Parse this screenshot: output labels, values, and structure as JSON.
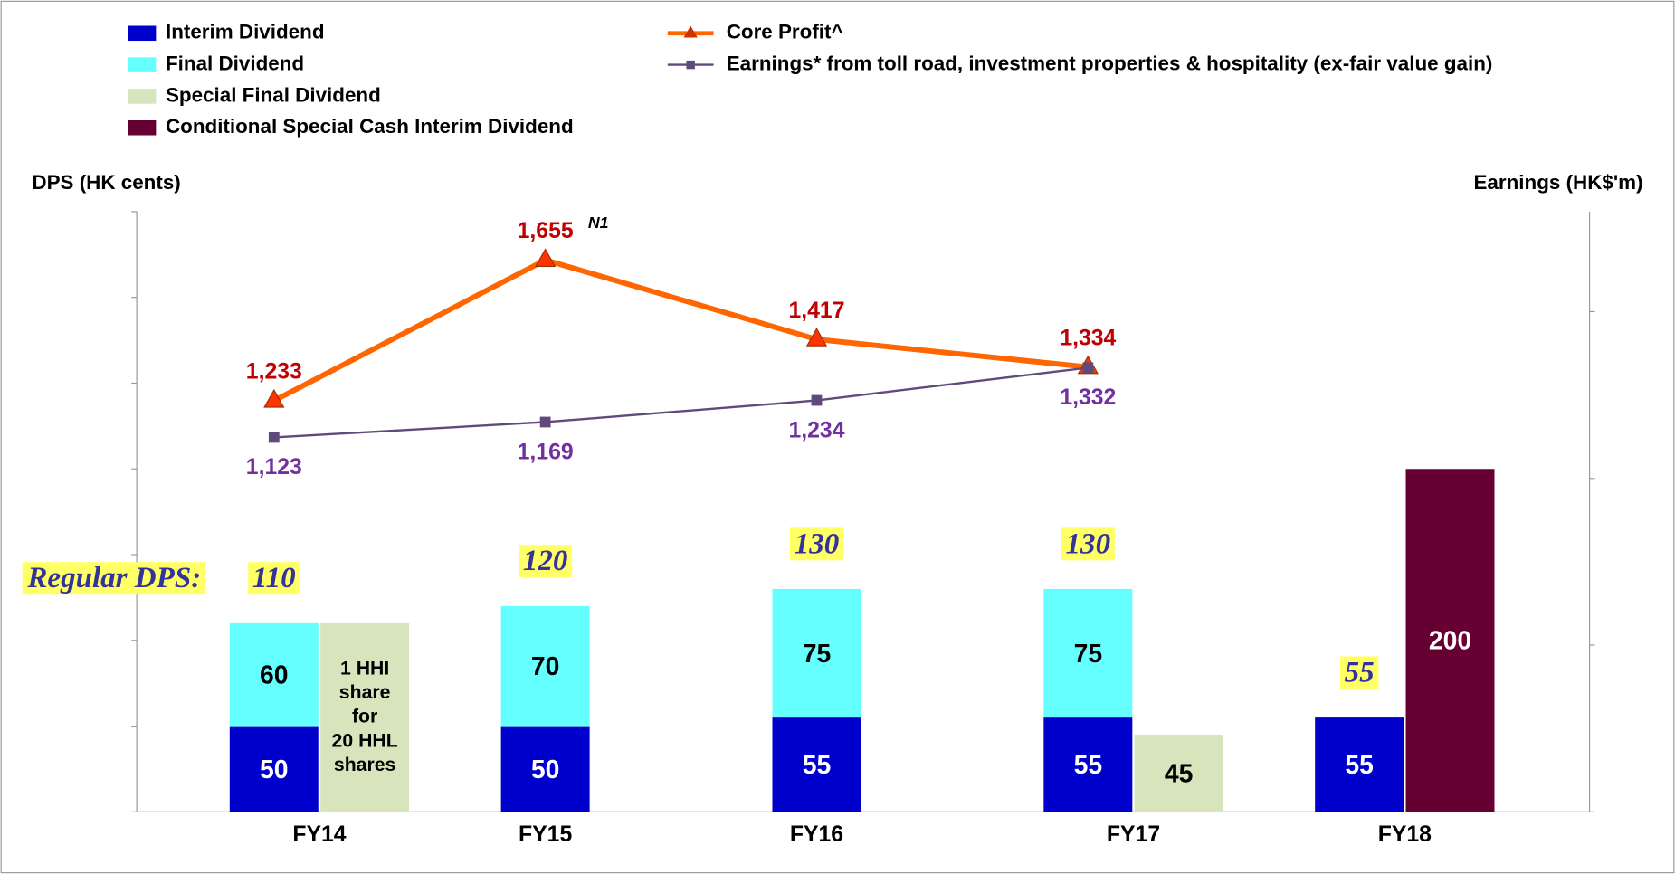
{
  "chart_data": {
    "type": "combo",
    "y_label": "DPS (HK cents)",
    "y2_label": "Earnings (HK$'m)",
    "categories": [
      "FY14",
      "FY15",
      "FY16",
      "FY17",
      "FY18"
    ],
    "ylim": [
      0,
      350
    ],
    "yticks": [
      0,
      50,
      100,
      150,
      200,
      250,
      300,
      350
    ],
    "y2lim": [
      0,
      1800
    ],
    "y2ticks": [
      0,
      500,
      1000,
      1500
    ],
    "series": [
      {
        "name": "Interim Dividend",
        "type": "bar",
        "column": "main",
        "color": "#0000CC",
        "label_color": "#FFFFFF",
        "values": [
          50,
          50,
          55,
          55,
          55
        ]
      },
      {
        "name": "Final Dividend",
        "type": "bar",
        "column": "main",
        "color": "#66FFFF",
        "label_color": "#000000",
        "values": [
          60,
          70,
          75,
          75,
          null
        ]
      },
      {
        "name": "Special Final Dividend",
        "type": "bar",
        "column": "side",
        "color": "#D8E4BC",
        "label_color": "#000000",
        "values": [
          110,
          null,
          null,
          45,
          null
        ]
      },
      {
        "name": "Conditional Special Cash Interim Dividend",
        "type": "bar",
        "column": "side",
        "color": "#660033",
        "label_color": "#FFFFFF",
        "values": [
          null,
          null,
          null,
          null,
          200
        ]
      },
      {
        "name": "Core Profit^",
        "type": "line",
        "axis": "y2",
        "color": "#FF6600",
        "marker": "triangle",
        "label_color": "#C00000",
        "label_side": "above",
        "values": [
          1233,
          1655,
          1417,
          1334,
          null
        ],
        "value_labels": [
          "1,233",
          "1,655",
          "1,417",
          "1,334",
          null
        ]
      },
      {
        "name": "Earnings* from toll road, investment properties & hospitality (ex-fair value gain)",
        "type": "line",
        "axis": "y2",
        "color": "#604A7B",
        "marker": "square",
        "label_color": "#7030A0",
        "label_side": "below",
        "values": [
          1123,
          1169,
          1234,
          1332,
          null
        ],
        "value_labels": [
          "1,123",
          "1,169",
          "1,234",
          "1,332",
          null
        ]
      }
    ],
    "regular_dps_label": "Regular DPS:",
    "regular_dps": [
      110,
      120,
      130,
      130,
      55
    ],
    "special_note": {
      "category": "FY14",
      "lines": [
        "1 HHI",
        "share",
        "for",
        "20 HHL",
        "shares"
      ]
    },
    "annotation": {
      "category": "FY15",
      "text": "N1"
    }
  }
}
